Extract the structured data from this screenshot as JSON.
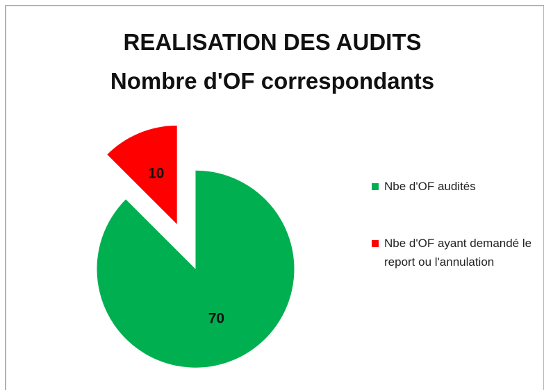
{
  "chart_data": {
    "type": "pie",
    "title": "REALISATION DES AUDITS",
    "subtitle": "Nombre d'OF correspondants",
    "categories": [
      "Nbe d'OF audités",
      "Nbe d'OF ayant demandé le report ou l'annulation"
    ],
    "values": [
      70,
      10
    ],
    "colors": [
      "#00b050",
      "#ff0000"
    ],
    "legend": "right"
  }
}
